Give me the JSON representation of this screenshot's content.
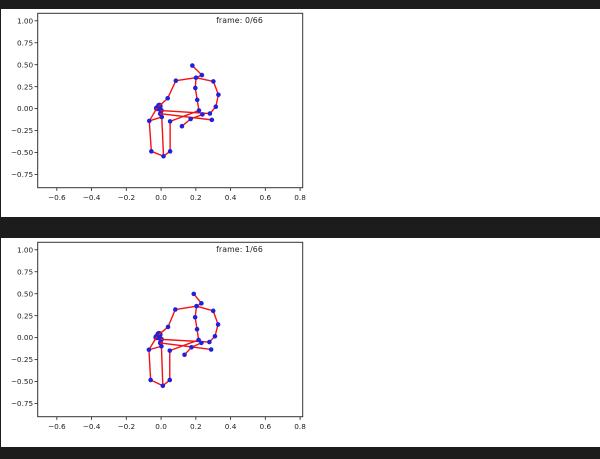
{
  "colors": {
    "page_background": "#1c1c1c",
    "figure_background": "#ffffff",
    "axis_spine": "#333333",
    "tick_label": "#222222",
    "bone_red": "#f31111",
    "joint_blue": "#2121dd"
  },
  "chart_data": [
    {
      "type": "scatter",
      "title": "frame: 0/66",
      "xlabel": "",
      "ylabel": "",
      "xlim": [
        -0.71,
        0.815
      ],
      "ylim": [
        -0.9,
        1.085
      ],
      "grid": false,
      "xticks": {
        "values": [
          -0.6,
          -0.4,
          -0.2,
          0.0,
          0.2,
          0.4,
          0.6,
          0.8
        ],
        "labels": [
          "−0.6",
          "−0.4",
          "−0.2",
          "0.0",
          "0.2",
          "0.4",
          "0.6",
          "0.8"
        ]
      },
      "yticks": {
        "values": [
          1.0,
          0.75,
          0.5,
          0.25,
          0.0,
          -0.25,
          -0.5,
          -0.75
        ],
        "labels": [
          "1.00",
          "0.75",
          "0.50",
          "0.25",
          "0.00",
          "−0.25",
          "−0.50",
          "−0.75"
        ]
      },
      "joints": [
        {
          "name": "head",
          "x": 0.18,
          "y": 0.49
        },
        {
          "name": "chin",
          "x": 0.235,
          "y": 0.382
        },
        {
          "name": "neck",
          "x": 0.201,
          "y": 0.352
        },
        {
          "name": "l-shoulder",
          "x": 0.085,
          "y": 0.318
        },
        {
          "name": "r-shoulder",
          "x": 0.301,
          "y": 0.31
        },
        {
          "name": "spine-upper",
          "x": 0.197,
          "y": 0.235
        },
        {
          "name": "spine-mid",
          "x": 0.208,
          "y": 0.1
        },
        {
          "name": "pelvis",
          "x": 0.218,
          "y": -0.022
        },
        {
          "name": "l-elbow",
          "x": 0.038,
          "y": 0.118
        },
        {
          "name": "l-hand-a",
          "x": -0.01,
          "y": 0.03,
          "r": 3.4,
          "under": true
        },
        {
          "name": "l-hand-b",
          "x": -0.024,
          "y": 0.004,
          "r": 3.0,
          "under": true
        },
        {
          "name": "l-hand-c",
          "x": 0.0,
          "y": -0.022,
          "r": 2.8,
          "under": true
        },
        {
          "name": "l-hand-d",
          "x": -0.004,
          "y": -0.058,
          "r": 2.5,
          "under": true
        },
        {
          "name": "r-elbow",
          "x": 0.33,
          "y": 0.158
        },
        {
          "name": "r-wrist",
          "x": 0.315,
          "y": 0.022
        },
        {
          "name": "r-hand-a",
          "x": 0.238,
          "y": -0.066
        },
        {
          "name": "r-hand-b",
          "x": 0.281,
          "y": -0.056
        },
        {
          "name": "r-hand-c",
          "x": 0.292,
          "y": -0.128
        },
        {
          "name": "mid-dot-n",
          "x": 0.17,
          "y": -0.118
        },
        {
          "name": "mid-dot-m",
          "x": 0.12,
          "y": -0.2
        },
        {
          "name": "l-hip",
          "x": -0.068,
          "y": -0.14
        },
        {
          "name": "c-hip",
          "x": 0.004,
          "y": -0.095
        },
        {
          "name": "r-hip",
          "x": 0.052,
          "y": -0.145
        },
        {
          "name": "l-foot",
          "x": -0.056,
          "y": -0.486
        },
        {
          "name": "mid-foot",
          "x": 0.014,
          "y": -0.542
        },
        {
          "name": "r-foot",
          "x": 0.052,
          "y": -0.486
        }
      ],
      "bones": [
        [
          "head",
          "chin"
        ],
        [
          "chin",
          "neck"
        ],
        [
          "l-shoulder",
          "neck"
        ],
        [
          "neck",
          "r-shoulder"
        ],
        [
          "neck",
          "spine-upper"
        ],
        [
          "spine-upper",
          "spine-mid"
        ],
        [
          "spine-mid",
          "pelvis"
        ],
        [
          "l-shoulder",
          "l-elbow"
        ],
        [
          "l-elbow",
          "l-hand-a"
        ],
        [
          "l-hand-d",
          "c-hip"
        ],
        [
          "r-shoulder",
          "r-elbow"
        ],
        [
          "r-elbow",
          "r-wrist"
        ],
        [
          "r-wrist",
          "r-hand-b"
        ],
        [
          "l-hand-c",
          "r-hand-b"
        ],
        [
          "l-hand-d",
          "r-hand-c"
        ],
        [
          "mid-dot-n",
          "mid-dot-m"
        ],
        [
          "mid-dot-n",
          "r-hand-a"
        ],
        [
          "pelvis",
          "r-hip"
        ],
        [
          "l-hand-b",
          "l-hip"
        ],
        [
          "l-hip",
          "c-hip"
        ],
        [
          "l-hip",
          "l-foot"
        ],
        [
          "c-hip",
          "mid-foot"
        ],
        [
          "r-hip",
          "r-foot"
        ],
        [
          "l-foot",
          "mid-foot"
        ],
        [
          "mid-foot",
          "r-foot"
        ]
      ]
    },
    {
      "type": "scatter",
      "title": "frame: 1/66",
      "xlabel": "",
      "ylabel": "",
      "xlim": [
        -0.71,
        0.815
      ],
      "ylim": [
        -0.9,
        1.085
      ],
      "grid": false,
      "xticks": {
        "values": [
          -0.6,
          -0.4,
          -0.2,
          0.0,
          0.2,
          0.4,
          0.6,
          0.8
        ],
        "labels": [
          "−0.6",
          "−0.4",
          "−0.2",
          "0.0",
          "0.2",
          "0.4",
          "0.6",
          "0.8"
        ]
      },
      "yticks": {
        "values": [
          1.0,
          0.75,
          0.5,
          0.25,
          0.0,
          -0.25,
          -0.5,
          -0.75
        ],
        "labels": [
          "1.00",
          "0.75",
          "0.50",
          "0.25",
          "0.00",
          "−0.25",
          "−0.50",
          "−0.75"
        ]
      },
      "joints": [
        {
          "name": "head",
          "x": 0.188,
          "y": 0.498
        },
        {
          "name": "chin",
          "x": 0.232,
          "y": 0.39
        },
        {
          "name": "neck",
          "x": 0.204,
          "y": 0.358
        },
        {
          "name": "l-shoulder",
          "x": 0.082,
          "y": 0.32
        },
        {
          "name": "r-shoulder",
          "x": 0.3,
          "y": 0.305
        },
        {
          "name": "spine-upper",
          "x": 0.196,
          "y": 0.232
        },
        {
          "name": "spine-mid",
          "x": 0.207,
          "y": 0.096
        },
        {
          "name": "pelvis",
          "x": 0.216,
          "y": -0.026
        },
        {
          "name": "l-elbow",
          "x": 0.04,
          "y": 0.122
        },
        {
          "name": "l-hand-a",
          "x": -0.012,
          "y": 0.036,
          "r": 3.6,
          "under": true
        },
        {
          "name": "l-hand-b",
          "x": -0.026,
          "y": 0.006,
          "r": 3.2,
          "under": true
        },
        {
          "name": "l-hand-c",
          "x": 0.0,
          "y": -0.02,
          "r": 2.8,
          "under": true
        },
        {
          "name": "l-hand-d",
          "x": -0.004,
          "y": -0.06,
          "r": 2.5,
          "under": true
        },
        {
          "name": "r-elbow",
          "x": 0.328,
          "y": 0.15
        },
        {
          "name": "r-wrist",
          "x": 0.31,
          "y": 0.015
        },
        {
          "name": "r-hand-a",
          "x": 0.232,
          "y": -0.06
        },
        {
          "name": "r-hand-b",
          "x": 0.278,
          "y": -0.05
        },
        {
          "name": "r-hand-c",
          "x": 0.288,
          "y": -0.135
        },
        {
          "name": "mid-dot-n",
          "x": 0.175,
          "y": -0.11
        },
        {
          "name": "mid-dot-m",
          "x": 0.135,
          "y": -0.195
        },
        {
          "name": "l-hip",
          "x": -0.07,
          "y": -0.138
        },
        {
          "name": "c-hip",
          "x": 0.002,
          "y": -0.098
        },
        {
          "name": "r-hip",
          "x": 0.05,
          "y": -0.148
        },
        {
          "name": "l-foot",
          "x": -0.06,
          "y": -0.482
        },
        {
          "name": "mid-foot",
          "x": 0.01,
          "y": -0.548
        },
        {
          "name": "r-foot",
          "x": 0.05,
          "y": -0.482
        }
      ],
      "bones": [
        [
          "head",
          "chin"
        ],
        [
          "chin",
          "neck"
        ],
        [
          "l-shoulder",
          "neck"
        ],
        [
          "neck",
          "r-shoulder"
        ],
        [
          "neck",
          "spine-upper"
        ],
        [
          "spine-upper",
          "spine-mid"
        ],
        [
          "spine-mid",
          "pelvis"
        ],
        [
          "l-shoulder",
          "l-elbow"
        ],
        [
          "l-elbow",
          "l-hand-a"
        ],
        [
          "l-hand-d",
          "c-hip"
        ],
        [
          "r-shoulder",
          "r-elbow"
        ],
        [
          "r-elbow",
          "r-wrist"
        ],
        [
          "r-wrist",
          "r-hand-b"
        ],
        [
          "l-hand-c",
          "r-hand-b"
        ],
        [
          "l-hand-d",
          "r-hand-c"
        ],
        [
          "mid-dot-n",
          "mid-dot-m"
        ],
        [
          "mid-dot-n",
          "r-hand-a"
        ],
        [
          "pelvis",
          "r-hip"
        ],
        [
          "l-hand-b",
          "l-hip"
        ],
        [
          "l-hip",
          "c-hip"
        ],
        [
          "l-hip",
          "l-foot"
        ],
        [
          "c-hip",
          "mid-foot"
        ],
        [
          "r-hip",
          "r-foot"
        ],
        [
          "l-foot",
          "mid-foot"
        ],
        [
          "mid-foot",
          "r-foot"
        ]
      ]
    }
  ]
}
